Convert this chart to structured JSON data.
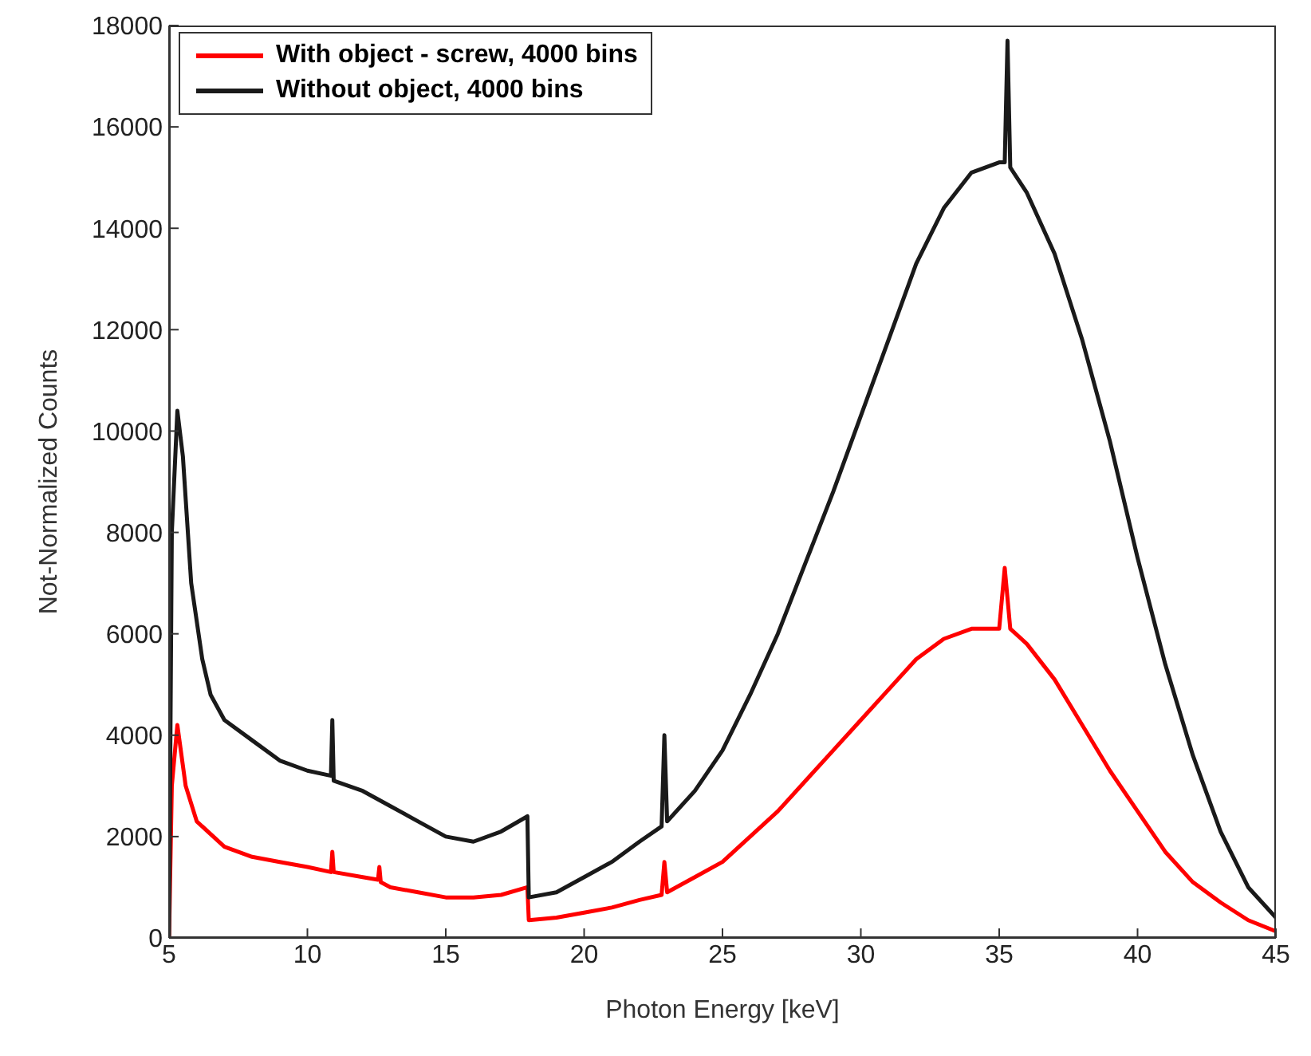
{
  "chart_data": {
    "type": "line",
    "xlabel": "Photon Energy [keV]",
    "ylabel": "Not-Normalized Counts",
    "xlim": [
      5,
      45
    ],
    "xticks": [
      5,
      10,
      15,
      20,
      25,
      30,
      35,
      40,
      45
    ],
    "ylim": [
      0,
      18000
    ],
    "yticks": [
      0,
      2000,
      4000,
      6000,
      8000,
      10000,
      12000,
      14000,
      16000,
      18000
    ],
    "grid": false,
    "legend": "top left",
    "marker": "none",
    "line_style": "solid",
    "series": [
      {
        "name": "With object - screw, 4000 bins",
        "color": "#ff0000",
        "x": [
          5.0,
          5.1,
          5.3,
          5.6,
          6,
          7,
          8,
          9,
          10,
          10.85,
          10.9,
          10.95,
          12,
          12.55,
          12.6,
          12.65,
          13,
          14,
          15,
          16,
          17,
          17.95,
          18.0,
          19,
          20,
          21,
          22,
          22.8,
          22.9,
          23,
          24,
          25,
          26,
          27,
          28,
          29,
          30,
          31,
          32,
          33,
          34,
          35,
          35.2,
          35.4,
          36,
          37,
          38,
          39,
          40,
          41,
          42,
          43,
          44,
          45
        ],
        "values": [
          0,
          3000,
          4200,
          3000,
          2300,
          1800,
          1600,
          1500,
          1400,
          1300,
          1700,
          1300,
          1200,
          1150,
          1400,
          1100,
          1000,
          900,
          800,
          800,
          850,
          1000,
          350,
          400,
          500,
          600,
          750,
          850,
          1500,
          900,
          1200,
          1500,
          2000,
          2500,
          3100,
          3700,
          4300,
          4900,
          5500,
          5900,
          6100,
          6100,
          7300,
          6100,
          5800,
          5100,
          4200,
          3300,
          2500,
          1700,
          1100,
          700,
          350,
          130
        ]
      },
      {
        "name": "Without object, 4000  bins",
        "color": "#1a1a1a",
        "x": [
          5.0,
          5.1,
          5.3,
          5.5,
          5.8,
          6.2,
          6.5,
          7,
          8,
          9,
          10,
          10.85,
          10.9,
          10.95,
          12,
          13,
          14,
          15,
          16,
          17,
          17.95,
          18.0,
          19,
          20,
          21,
          22,
          22.8,
          22.9,
          23,
          24,
          25,
          26,
          27,
          28,
          29,
          30,
          31,
          32,
          33,
          34,
          35,
          35.2,
          35.3,
          35.4,
          36,
          37,
          38,
          39,
          40,
          41,
          42,
          43,
          44,
          45
        ],
        "values": [
          0,
          8000,
          10400,
          9500,
          7000,
          5500,
          4800,
          4300,
          3900,
          3500,
          3300,
          3200,
          4300,
          3100,
          2900,
          2600,
          2300,
          2000,
          1900,
          2100,
          2400,
          800,
          900,
          1200,
          1500,
          1900,
          2200,
          4000,
          2300,
          2900,
          3700,
          4800,
          6000,
          7400,
          8800,
          10300,
          11800,
          13300,
          14400,
          15100,
          15300,
          15300,
          17700,
          15200,
          14700,
          13500,
          11800,
          9800,
          7500,
          5400,
          3600,
          2100,
          1000,
          400
        ]
      }
    ]
  }
}
